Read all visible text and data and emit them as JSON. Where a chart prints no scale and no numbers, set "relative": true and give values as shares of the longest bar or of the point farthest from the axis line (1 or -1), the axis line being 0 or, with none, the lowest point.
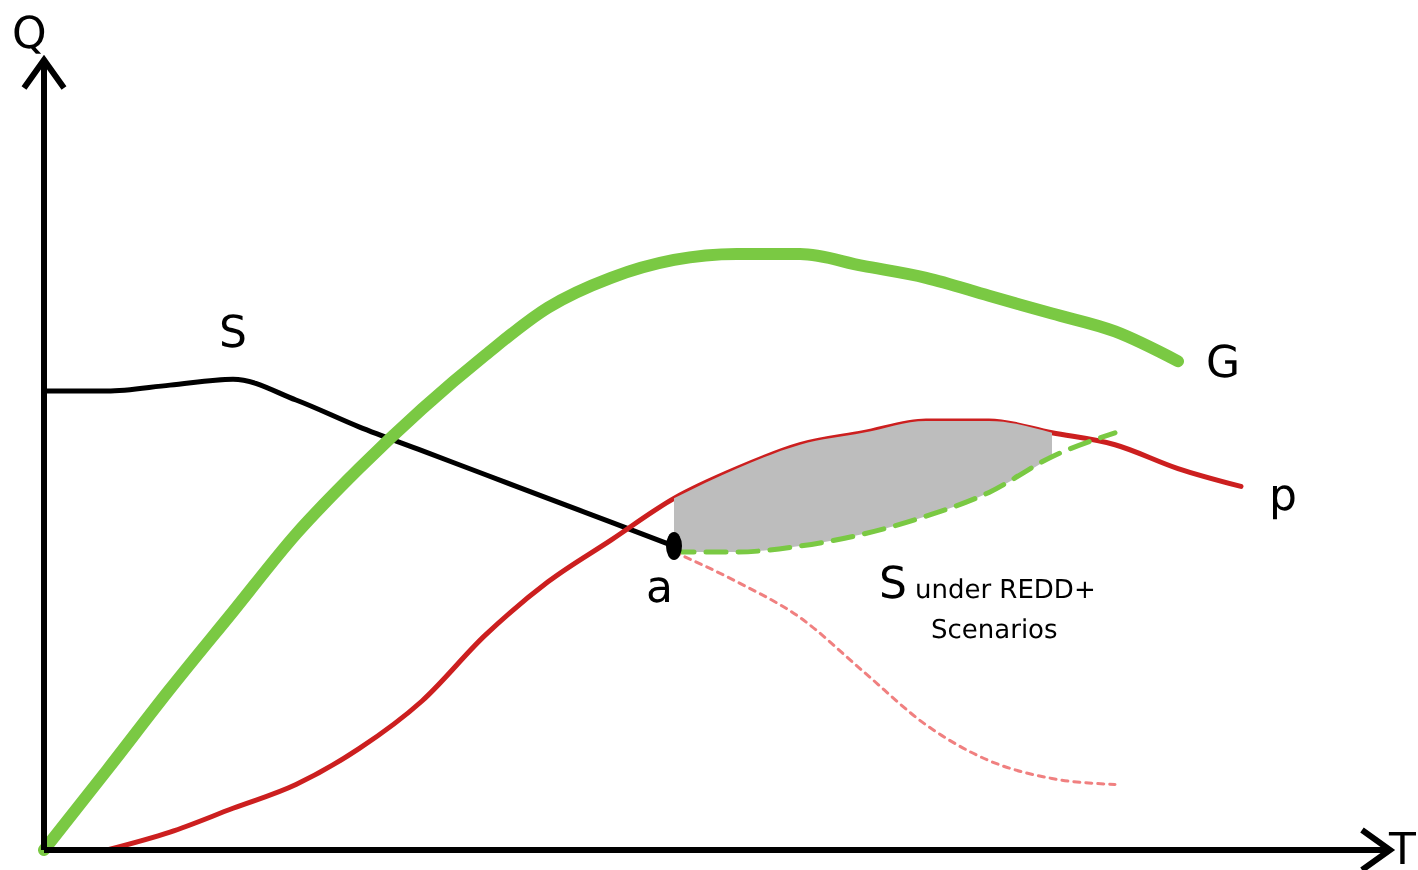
{
  "chart_data": {
    "type": "line",
    "relative": true,
    "xlabel": "T",
    "ylabel": "Q",
    "grid": false,
    "annotations": [
      "a"
    ],
    "categories": [
      null,
      null,
      null,
      null,
      null,
      null,
      null,
      null,
      null,
      null,
      null,
      null,
      null,
      null,
      null,
      null,
      null,
      null,
      null,
      null,
      null
    ],
    "series": [
      {
        "name": "S",
        "color": "#000000",
        "values": [
          0.77,
          0.77,
          0.78,
          0.79,
          0.755,
          0.71,
          0.67,
          0.63,
          0.59,
          0.55,
          0.51,
          null,
          null,
          null,
          null,
          null,
          null,
          null,
          null,
          null,
          null
        ]
      },
      {
        "name": "G",
        "color": "#7ac943",
        "values": [
          0,
          0.134,
          0.27,
          0.4,
          0.53,
          0.64,
          0.74,
          0.83,
          0.91,
          0.96,
          0.99,
          1,
          1,
          0.98,
          0.96,
          0.93,
          0.9,
          0.87,
          0.82,
          null,
          null
        ]
      },
      {
        "name": "p",
        "color": "#cc1f1f",
        "values": [
          null,
          0,
          0.03,
          0.07,
          0.11,
          0.17,
          0.25,
          0.36,
          0.45,
          0.52,
          0.59,
          0.64,
          0.68,
          0.7,
          0.72,
          0.72,
          0.7,
          0.68,
          0.64,
          0.61,
          null
        ]
      },
      {
        "name": "S under REDD+ Scenarios",
        "color": "#7ac943",
        "line_style": "dashed",
        "values": [
          null,
          null,
          null,
          null,
          null,
          null,
          null,
          null,
          null,
          null,
          0.5,
          0.5,
          0.51,
          0.53,
          0.56,
          0.6,
          0.66,
          0.7,
          null,
          null,
          null
        ],
        "lower": [
          null,
          null,
          null,
          null,
          null,
          null,
          null,
          null,
          null,
          null,
          0.5,
          0.5,
          0.51,
          0.53,
          0.56,
          0.6,
          0.66,
          null,
          null,
          null,
          null
        ],
        "upper": [
          null,
          null,
          null,
          null,
          null,
          null,
          null,
          null,
          null,
          null,
          0.59,
          0.64,
          0.68,
          0.7,
          0.72,
          0.72,
          0.7,
          null,
          null,
          null,
          null
        ]
      },
      {
        "color": "#f08080",
        "line_style": "dotted",
        "values": [
          null,
          null,
          null,
          null,
          null,
          null,
          null,
          null,
          null,
          null,
          0.5,
          0.45,
          0.39,
          0.3,
          0.21,
          0.15,
          0.12,
          0.11,
          null,
          null,
          null
        ]
      }
    ]
  }
}
